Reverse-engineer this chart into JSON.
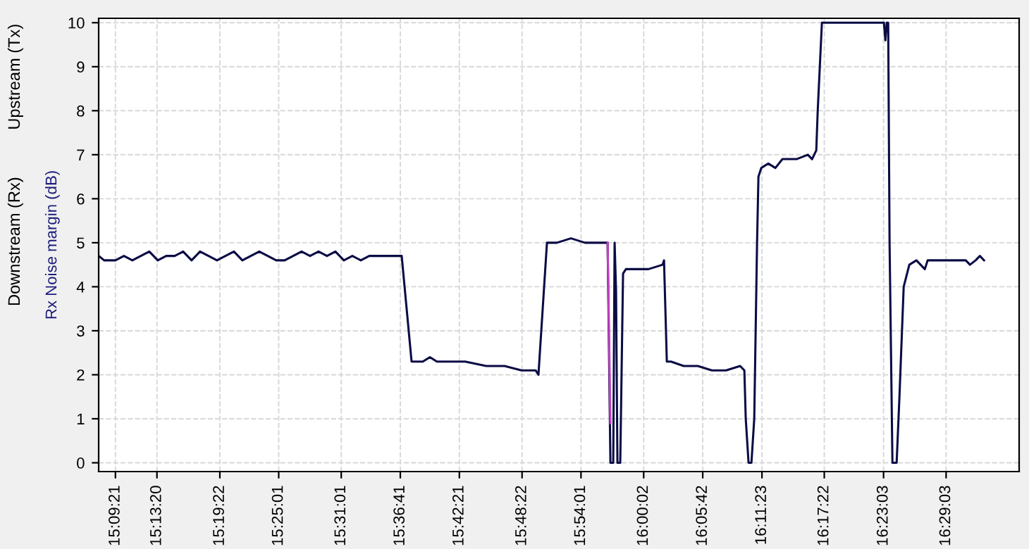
{
  "chart_data": {
    "type": "line",
    "ylabel": "Rx Noise margin (dB)",
    "annotations": [
      "Downstream (Rx)",
      "Upstream (Tx)"
    ],
    "series": [
      {
        "color": "#0b0b45",
        "x": [
          15.1292,
          15.1378,
          15.1558,
          15.1694,
          15.1829,
          15.1964,
          15.21,
          15.2235,
          15.237,
          15.2506,
          15.2641,
          15.2776,
          15.2911,
          15.3047,
          15.3182,
          15.3317,
          15.3453,
          15.3588,
          15.3723,
          15.3858,
          15.3994,
          15.4129,
          15.4264,
          15.44,
          15.4535,
          15.467,
          15.4806,
          15.4941,
          15.5076,
          15.5211,
          15.5347,
          15.5482,
          15.5617,
          15.5753,
          15.5888,
          15.6023,
          15.6136,
          15.6294,
          15.6361,
          15.6474,
          15.6587,
          15.6699,
          15.6925,
          15.7151,
          15.7489,
          15.7782,
          15.8053,
          15.8278,
          15.8323,
          15.8391,
          15.8459,
          15.8617,
          15.8843,
          15.9068,
          15.9294,
          15.9429,
          15.9474,
          15.9519,
          15.9541,
          15.9564,
          15.9586,
          15.9631,
          15.9676,
          15.9722,
          15.9857,
          16.0083,
          16.0308,
          16.0331,
          16.0376,
          16.0443,
          16.0646,
          16.0872,
          16.1097,
          16.1323,
          16.1548,
          16.1616,
          16.1638,
          16.1683,
          16.1729,
          16.1774,
          16.1819,
          16.1841,
          16.1887,
          16.1999,
          16.2112,
          16.2225,
          16.245,
          16.2631,
          16.2699,
          16.2766,
          16.2789,
          16.2856,
          16.3239,
          16.3848,
          16.3871,
          16.3893,
          16.3916,
          16.3938,
          16.3984,
          16.4051,
          16.4096,
          16.4164,
          16.4254,
          16.4367,
          16.4502,
          16.4547,
          16.4818,
          16.5156,
          16.5224,
          16.5314,
          16.5382,
          16.5449
        ],
        "values": [
          4.7,
          4.6,
          4.6,
          4.7,
          4.6,
          4.7,
          4.8,
          4.6,
          4.7,
          4.7,
          4.8,
          4.6,
          4.8,
          4.7,
          4.6,
          4.7,
          4.8,
          4.6,
          4.7,
          4.8,
          4.7,
          4.6,
          4.6,
          4.7,
          4.8,
          4.7,
          4.8,
          4.7,
          4.8,
          4.6,
          4.7,
          4.6,
          4.7,
          4.7,
          4.7,
          4.7,
          4.7,
          2.3,
          2.3,
          2.3,
          2.4,
          2.3,
          2.3,
          2.3,
          2.2,
          2.2,
          2.1,
          2.1,
          2.0,
          3.5,
          5.0,
          5.0,
          5.1,
          5.0,
          5.0,
          5.0,
          0,
          0,
          5.0,
          3.9,
          0,
          0,
          4.3,
          4.4,
          4.4,
          4.4,
          4.5,
          4.6,
          2.3,
          2.3,
          2.2,
          2.2,
          2.1,
          2.1,
          2.2,
          2.1,
          1.0,
          0,
          0,
          1.0,
          5.0,
          6.5,
          6.7,
          6.8,
          6.7,
          6.9,
          6.9,
          7.0,
          6.9,
          7.1,
          8.0,
          10.0,
          10.0,
          10.0,
          9.6,
          10.0,
          10.0,
          5.0,
          0,
          0,
          1.5,
          4.0,
          4.5,
          4.6,
          4.4,
          4.6,
          4.6,
          4.6,
          4.5,
          4.6,
          4.7,
          4.6
        ]
      },
      {
        "color": "#c040c0",
        "x": [
          15.9429,
          15.9474
        ],
        "values": [
          5.0,
          0.9
        ]
      }
    ],
    "xlim": [
      15.129,
      16.601
    ],
    "xticks": [
      {
        "value": 15.1558,
        "label": "15:09:21"
      },
      {
        "value": 15.2222,
        "label": "15:13:20"
      },
      {
        "value": 15.3228,
        "label": "15:19:22"
      },
      {
        "value": 15.4169,
        "label": "15:25:01"
      },
      {
        "value": 15.5169,
        "label": "15:31:01"
      },
      {
        "value": 15.6114,
        "label": "15:36:41"
      },
      {
        "value": 15.7058,
        "label": "15:42:21"
      },
      {
        "value": 15.8061,
        "label": "15:48:22"
      },
      {
        "value": 15.9003,
        "label": "15:54:01"
      },
      {
        "value": 16.0006,
        "label": "16:00:02"
      },
      {
        "value": 16.095,
        "label": "16:05:42"
      },
      {
        "value": 16.1897,
        "label": "16:11:23"
      },
      {
        "value": 16.2894,
        "label": "16:17:22"
      },
      {
        "value": 16.3842,
        "label": "16:23:03"
      },
      {
        "value": 16.4842,
        "label": "16:29:03"
      }
    ],
    "ylim": [
      -0.2,
      10.1
    ],
    "yticks": [
      0,
      1,
      2,
      3,
      4,
      5,
      6,
      7,
      8,
      9,
      10
    ],
    "grid": true,
    "legend": false,
    "marker": "none",
    "line_style": "solid"
  }
}
